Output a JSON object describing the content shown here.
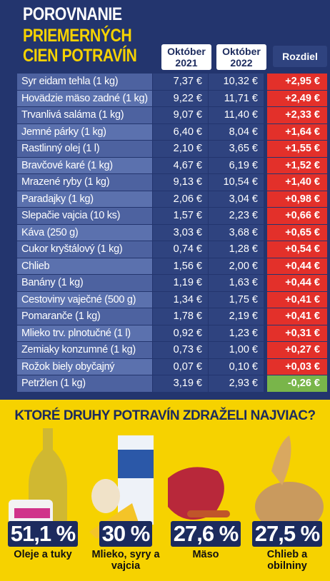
{
  "header": {
    "title_lines": [
      "POROVNANIE",
      "PRIEMERNÝCH",
      "CIEN POTRAVÍN"
    ],
    "columns": [
      "Október 2021",
      "Október 2022",
      "Rozdiel"
    ]
  },
  "table": {
    "rows": [
      [
        "Syr eidam tehla (1 kg)",
        "7,37 €",
        "10,32 €",
        "+2,95 €"
      ],
      [
        "Hovädzie mäso zadné (1 kg)",
        "9,22 €",
        "11,71 €",
        "+2,49 €"
      ],
      [
        "Trvanlivá saláma (1 kg)",
        "9,07 €",
        "11,40 €",
        "+2,33 €"
      ],
      [
        "Jemné párky (1 kg)",
        "6,40 €",
        "8,04 €",
        "+1,64 €"
      ],
      [
        "Rastlinný olej (1 l)",
        "2,10 €",
        "3,65 €",
        "+1,55 €"
      ],
      [
        "Bravčové karé (1 kg)",
        "4,67 €",
        "6,19 €",
        "+1,52 €"
      ],
      [
        "Mrazené ryby (1 kg)",
        "9,13 €",
        "10,54 €",
        "+1,40 €"
      ],
      [
        "Paradajky (1 kg)",
        "2,06 €",
        "3,04 €",
        "+0,98 €"
      ],
      [
        "Slepačie vajcia (10 ks)",
        "1,57 €",
        "2,23 €",
        "+0,66 €"
      ],
      [
        "Káva (250 g)",
        "3,03 €",
        "3,68 €",
        "+0,65 €"
      ],
      [
        "Cukor kryštálový (1 kg)",
        "0,74 €",
        "1,28 €",
        "+0,54 €"
      ],
      [
        "Chlieb",
        "1,56 €",
        "2,00 €",
        "+0,44 €"
      ],
      [
        "Banány (1 kg)",
        "1,19 €",
        "1,63 €",
        "+0,44 €"
      ],
      [
        "Cestoviny vaječné (500 g)",
        "1,34 €",
        "1,75 €",
        "+0,41 €"
      ],
      [
        "Pomaranče (1 kg)",
        "1,78 €",
        "2,19 €",
        "+0,41 €"
      ],
      [
        "Mlieko trv. plnotučné (1 l)",
        "0,92 €",
        "1,23 €",
        "+0,31 €"
      ],
      [
        "Zemiaky konzumné (1 kg)",
        "0,73 €",
        "1,00 €",
        "+0,27 €"
      ],
      [
        "Rožok biely obyčajný",
        "0,07 €",
        "0,10 €",
        "+0,03 €"
      ],
      [
        "Petržlen (1 kg)",
        "3,19 €",
        "2,93 €",
        "-0,26 €"
      ]
    ]
  },
  "bottom": {
    "heading": "KTORÉ DRUHY POTRAVÍN ZDRAŽELI NAJVIAC?",
    "items": [
      {
        "percent": "51,1 %",
        "label": "Oleje a tuky"
      },
      {
        "percent": "30 %",
        "label": "Mlieko, syry a vajcia"
      },
      {
        "percent": "27,6 %",
        "label": "Mäso"
      },
      {
        "percent": "27,5 %",
        "label": "Chlieb a obilniny"
      }
    ]
  }
}
